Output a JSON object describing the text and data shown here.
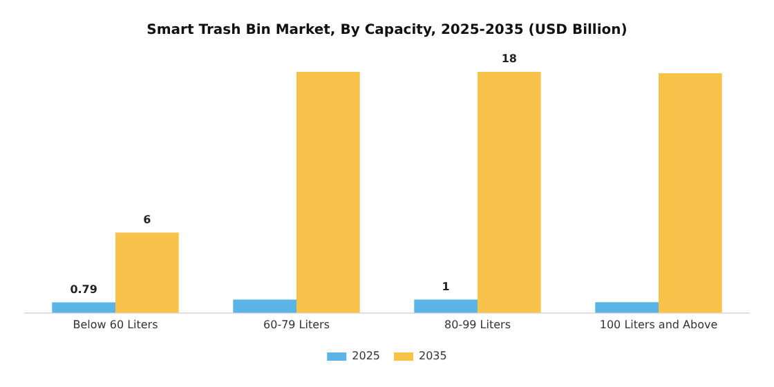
{
  "chart_data": {
    "type": "bar",
    "title": "Smart Trash Bin Market, By Capacity, 2025-2035 (USD Billion)",
    "categories": [
      "Below 60 Liters",
      "60-79 Liters",
      "80-99 Liters",
      "100 Liters and Above"
    ],
    "series": [
      {
        "name": "2025",
        "color": "#5ab4e5",
        "values": [
          0.79,
          1,
          1,
          0.8
        ],
        "value_labels": [
          "0.79",
          null,
          "1",
          null
        ]
      },
      {
        "name": "2035",
        "color": "#f9c34b",
        "values": [
          6,
          18,
          18,
          17.9
        ],
        "value_labels": [
          "6",
          null,
          "18",
          null
        ]
      }
    ],
    "legend": "bottom",
    "grid": false,
    "tick_labels": "x"
  }
}
